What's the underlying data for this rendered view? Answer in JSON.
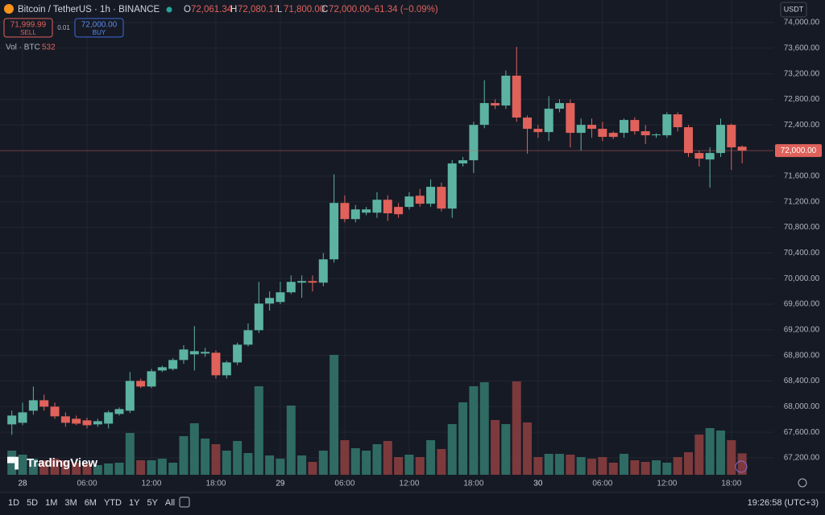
{
  "header": {
    "symbol": "Bitcoin / TetherUS · 1h · BINANCE",
    "o_key": "O",
    "o": "72,061.34",
    "h_key": "H",
    "h": "72,080.17",
    "l_key": "L",
    "l": "71,800.00",
    "c_key": "C",
    "c": "72,000.00",
    "change": "−61.34 (−0.09%)"
  },
  "trade": {
    "sell_price": "71,999.99",
    "sell": "SELL",
    "spread": "0.01",
    "buy_price": "72,000.00",
    "buy": "BUY"
  },
  "volume_legend": {
    "label": "Vol · BTC",
    "value": "532"
  },
  "currency": "USDT",
  "logo": "TradingView",
  "ranges": [
    "1D",
    "5D",
    "1M",
    "3M",
    "6M",
    "YTD",
    "1Y",
    "5Y",
    "All"
  ],
  "clock": "19:26:58 (UTC+3)",
  "chart_data": {
    "type": "candlestick",
    "categories": [
      null,
      "28",
      null,
      null,
      null,
      null,
      null,
      "06:00",
      null,
      null,
      null,
      null,
      null,
      "12:00",
      null,
      null,
      null,
      null,
      null,
      "18:00",
      null,
      null,
      null,
      null,
      null,
      "29",
      null,
      null,
      null,
      null,
      null,
      "06:00",
      null,
      null,
      null,
      null,
      null,
      "12:00",
      null,
      null,
      null,
      null,
      null,
      "18:00",
      null,
      null,
      null,
      null,
      null,
      "30",
      null,
      null,
      null,
      null,
      null,
      "06:00",
      null,
      null,
      null,
      null,
      null,
      "12:00",
      null,
      null,
      null,
      null,
      null,
      "18:00",
      null
    ],
    "open": [
      67723,
      67748,
      67937,
      68100,
      68000,
      67849,
      67811,
      67786,
      67723,
      67735,
      67886,
      67937,
      68402,
      68314,
      68565,
      68590,
      68729,
      68817,
      68830,
      68842,
      68490,
      68691,
      68968,
      69194,
      69610,
      69635,
      69786,
      69937,
      69962,
      69937,
      70301,
      71182,
      70930,
      71030,
      71030,
      71232,
      71120,
      71120,
      71295,
      71170,
      71434,
      71094,
      71799,
      71849,
      72402,
      72742,
      72704,
      73170,
      72516,
      72340,
      72289,
      72654,
      72742,
      72277,
      72402,
      72340,
      72277,
      72277,
      72478,
      72302,
      72239,
      72239,
      72566,
      72365,
      71962,
      71861,
      71962,
      72402,
      72061.34
    ],
    "high": [
      67937,
      68062,
      68314,
      68188,
      68062,
      67911,
      67861,
      67830,
      67811,
      67937,
      67987,
      68540,
      68440,
      68590,
      68640,
      68760,
      68960,
      69257,
      68920,
      68880,
      68716,
      69000,
      69300,
      69950,
      69800,
      69950,
      70050,
      70050,
      70050,
      70400,
      71630,
      71300,
      71150,
      71120,
      71350,
      71300,
      71180,
      71350,
      71400,
      71550,
      71500,
      71850,
      71900,
      72450,
      73100,
      72800,
      73250,
      73620,
      72550,
      72400,
      72850,
      72800,
      72800,
      72500,
      72500,
      72450,
      72300,
      72500,
      72520,
      72400,
      72270,
      72600,
      72600,
      72400,
      72000,
      72050,
      72500,
      72420,
      72080.17
    ],
    "low": [
      67560,
      67710,
      67874,
      67937,
      67811,
      67685,
      67710,
      67660,
      67685,
      67660,
      67861,
      67900,
      68290,
      68290,
      68540,
      68565,
      68670,
      68565,
      68780,
      68440,
      68440,
      68650,
      68940,
      69150,
      69500,
      69600,
      69760,
      69700,
      69800,
      69880,
      70250,
      70880,
      70880,
      70990,
      70950,
      70900,
      70950,
      71080,
      71120,
      71120,
      71050,
      70950,
      71750,
      71650,
      72350,
      72650,
      72650,
      72450,
      71950,
      72200,
      72150,
      72600,
      72050,
      72000,
      72200,
      72150,
      72180,
      72200,
      72250,
      72100,
      72200,
      72200,
      72300,
      71900,
      71750,
      71420,
      71900,
      71700,
      71800
    ],
    "close": [
      67861,
      67911,
      68100,
      68000,
      67849,
      67748,
      67735,
      67710,
      67773,
      67911,
      67962,
      68402,
      68314,
      68553,
      68616,
      68729,
      68893,
      68867,
      68855,
      68490,
      68691,
      68968,
      69194,
      69610,
      69698,
      69786,
      69949,
      69962,
      69937,
      70301,
      71182,
      70930,
      71081,
      71081,
      71232,
      71020,
      71006,
      71283,
      71170,
      71434,
      71094,
      71799,
      71849,
      72402,
      72742,
      72704,
      73170,
      72516,
      72340,
      72289,
      72654,
      72742,
      72277,
      72402,
      72340,
      72214,
      72214,
      72478,
      72302,
      72239,
      72252,
      72566,
      72365,
      71962,
      71874,
      71962,
      72402,
      72050,
      72000
    ],
    "volume": [
      600,
      500,
      400,
      360,
      400,
      360,
      300,
      280,
      240,
      280,
      300,
      1040,
      360,
      360,
      400,
      300,
      960,
      1280,
      900,
      760,
      600,
      840,
      540,
      2200,
      480,
      400,
      1720,
      480,
      320,
      600,
      2980,
      860,
      660,
      600,
      760,
      840,
      440,
      500,
      440,
      860,
      640,
      1260,
      1800,
      2200,
      2300,
      1360,
      1260,
      2320,
      1300,
      440,
      520,
      520,
      500,
      440,
      400,
      440,
      300,
      520,
      360,
      320,
      360,
      300,
      440,
      560,
      1000,
      1160,
      1100,
      860,
      532
    ],
    "up_color": "#5cb3a2",
    "down_color": "#e0625b",
    "up_volume_color": "#2f6b63",
    "down_volume_color": "#7d3a3c",
    "ylim": [
      66936,
      74352
    ],
    "yticks": [
      {
        "value": 67200,
        "label": "67,200.00"
      },
      {
        "value": 67600,
        "label": "67,600.00"
      },
      {
        "value": 68000,
        "label": "68,000.00"
      },
      {
        "value": 68400,
        "label": "68,400.00"
      },
      {
        "value": 68800,
        "label": "68,800.00"
      },
      {
        "value": 69200,
        "label": "69,200.00"
      },
      {
        "value": 69600,
        "label": "69,600.00"
      },
      {
        "value": 70000,
        "label": "70,000.00"
      },
      {
        "value": 70400,
        "label": "70,400.00"
      },
      {
        "value": 70800,
        "label": "70,800.00"
      },
      {
        "value": 71200,
        "label": "71,200.00"
      },
      {
        "value": 71600,
        "label": "71,600.00"
      },
      {
        "value": 72000,
        "label": "72,000.00"
      },
      {
        "value": 72400,
        "label": "72,400.00"
      },
      {
        "value": 72800,
        "label": "72,800.00"
      },
      {
        "value": 73200,
        "label": "73,200.00"
      },
      {
        "value": 73600,
        "label": "73,600.00"
      },
      {
        "value": 74000,
        "label": "74,000.00"
      }
    ],
    "price_line": {
      "value": 72000,
      "label": "72,000.00"
    },
    "grid": true
  }
}
